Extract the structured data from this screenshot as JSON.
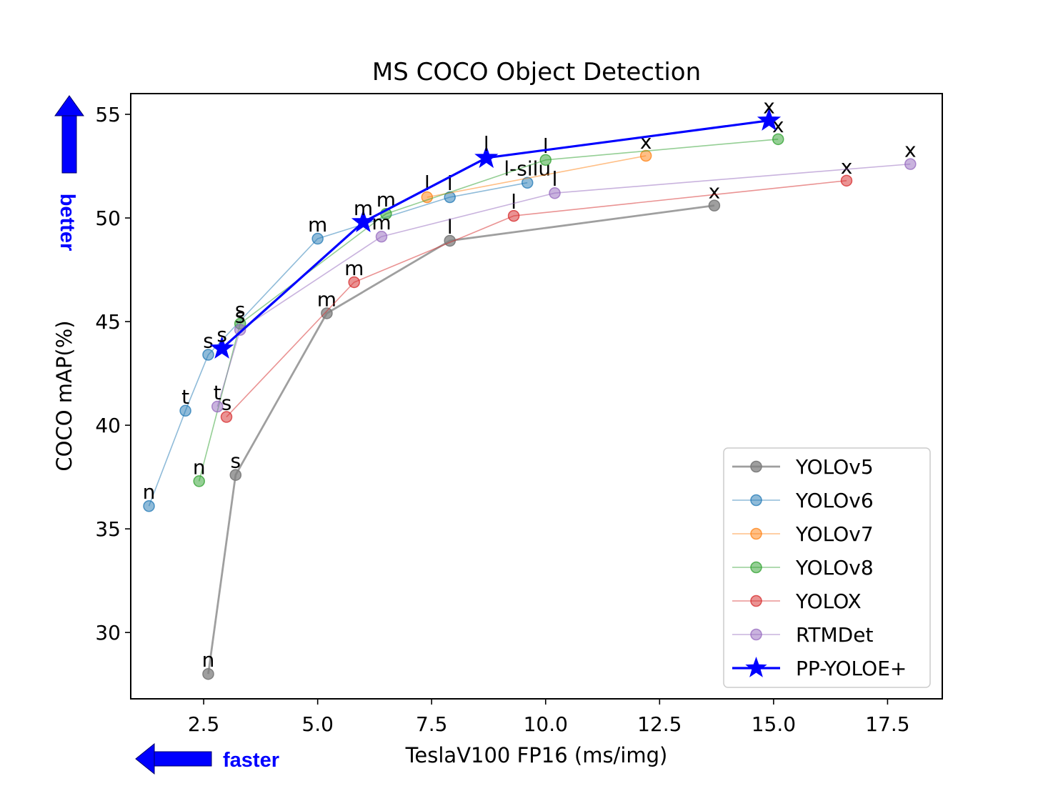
{
  "chart_data": {
    "type": "line",
    "title": "MS COCO Object Detection",
    "xlabel": "TeslaV100 FP16 (ms/img)",
    "ylabel": "COCO mAP(%)",
    "xlim": [
      0.9,
      18.7
    ],
    "ylim": [
      26.8,
      56.0
    ],
    "xticks": [
      2.5,
      5.0,
      7.5,
      10.0,
      12.5,
      15.0,
      17.5
    ],
    "xtick_labels": [
      "2.5",
      "5.0",
      "7.5",
      "10.0",
      "12.5",
      "15.0",
      "17.5"
    ],
    "yticks": [
      30,
      35,
      40,
      45,
      50,
      55
    ],
    "ytick_labels": [
      "30",
      "35",
      "40",
      "45",
      "50",
      "55"
    ],
    "grid": false,
    "legend_position": "bottom-right",
    "series": [
      {
        "name": "YOLOv5",
        "color": "#7f7f7f",
        "opacity": 0.75,
        "width": 2.8,
        "marker": "circle",
        "x": [
          2.6,
          3.2,
          5.2,
          7.9,
          13.7
        ],
        "y": [
          28.0,
          37.6,
          45.4,
          48.9,
          50.6
        ],
        "labels": [
          "n",
          "s",
          "m",
          "l",
          "x"
        ]
      },
      {
        "name": "YOLOv6",
        "color": "#1f77b4",
        "opacity": 0.5,
        "width": 1.6,
        "marker": "circle",
        "x": [
          1.3,
          2.1,
          2.6,
          5.0,
          7.9,
          9.6
        ],
        "y": [
          36.1,
          40.7,
          43.4,
          49.0,
          51.0,
          51.7
        ],
        "labels": [
          "n",
          "t",
          "s",
          "m",
          "l",
          "l-silu"
        ]
      },
      {
        "name": "YOLOv7",
        "color": "#ff7f0e",
        "opacity": 0.5,
        "width": 1.6,
        "marker": "circle",
        "x": [
          7.4,
          12.2
        ],
        "y": [
          51.0,
          53.0
        ],
        "labels": [
          "l",
          "x"
        ]
      },
      {
        "name": "YOLOv8",
        "color": "#2ca02c",
        "opacity": 0.5,
        "width": 1.6,
        "marker": "circle",
        "x": [
          2.4,
          3.3,
          6.5,
          10.0,
          15.1
        ],
        "y": [
          37.3,
          44.9,
          50.2,
          52.8,
          53.8
        ],
        "labels": [
          "n",
          "s",
          "m",
          "l",
          "x"
        ]
      },
      {
        "name": "YOLOX",
        "color": "#d62728",
        "opacity": 0.5,
        "width": 1.6,
        "marker": "circle",
        "x": [
          3.0,
          5.8,
          9.3,
          16.6
        ],
        "y": [
          40.4,
          46.9,
          50.1,
          51.8
        ],
        "labels": [
          "s",
          "m",
          "l",
          "x"
        ]
      },
      {
        "name": "RTMDet",
        "color": "#9467bd",
        "opacity": 0.5,
        "width": 1.6,
        "marker": "circle",
        "x": [
          2.8,
          3.3,
          6.4,
          10.2,
          18.0
        ],
        "y": [
          40.9,
          44.6,
          49.1,
          51.2,
          52.6
        ],
        "labels": [
          "t",
          "s",
          "m",
          "l",
          "x"
        ]
      },
      {
        "name": "PP-YOLOE+",
        "color": "#0000ff",
        "opacity": 1.0,
        "width": 3.2,
        "marker": "star",
        "x": [
          2.9,
          6.0,
          8.7,
          14.9
        ],
        "y": [
          43.7,
          49.8,
          52.9,
          54.7
        ],
        "labels": [
          "s",
          "m",
          "l",
          "x"
        ]
      }
    ]
  },
  "annotations": {
    "better": "better",
    "faster": "faster"
  }
}
